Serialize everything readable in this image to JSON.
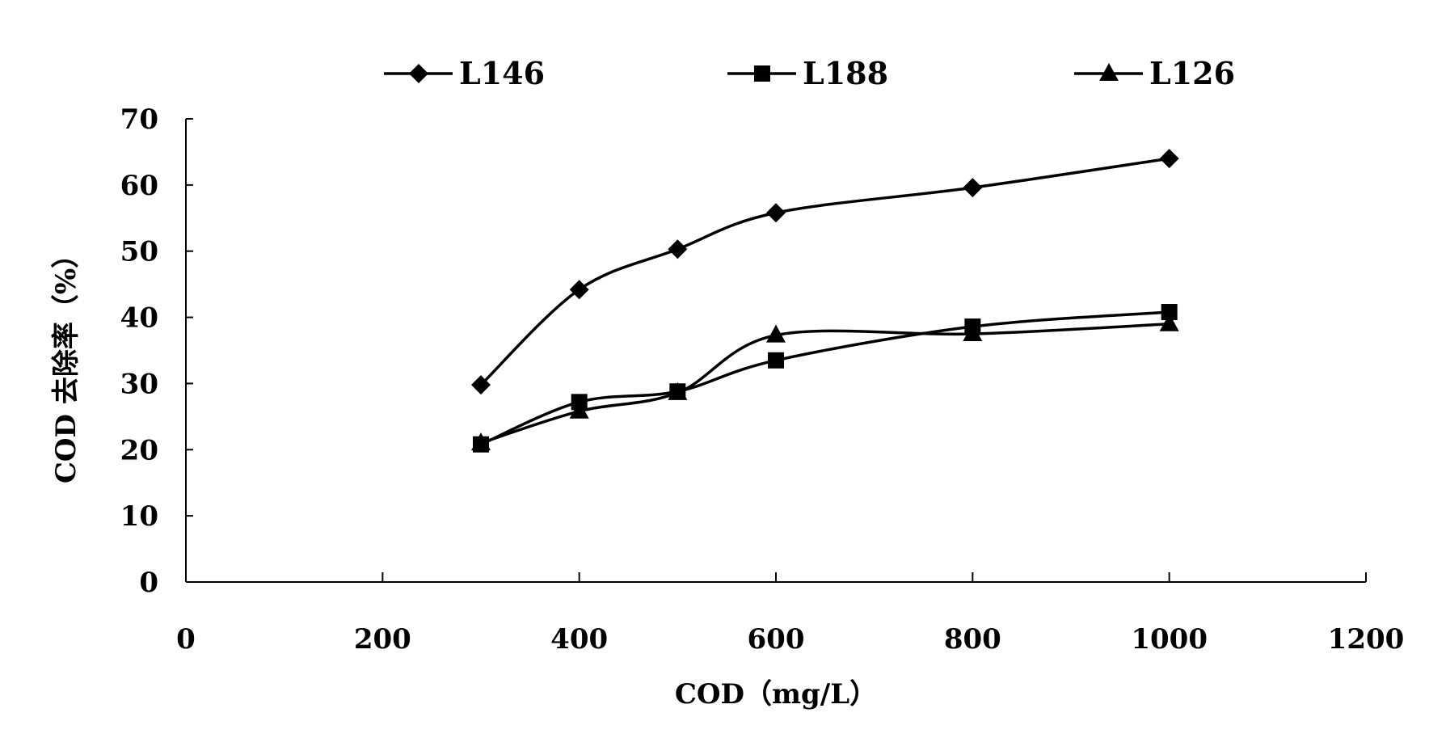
{
  "chart_data": {
    "type": "line",
    "xlabel": "COD（mg/L）",
    "ylabel": "COD 去除率（%）",
    "xlim": [
      0,
      1200
    ],
    "ylim": [
      0,
      70
    ],
    "x_ticks": [
      "0",
      "200",
      "400",
      "600",
      "800",
      "1000",
      "1200"
    ],
    "y_ticks": [
      "0",
      "10",
      "20",
      "30",
      "40",
      "50",
      "60",
      "70"
    ],
    "grid": false,
    "legend_position": "top",
    "series": [
      {
        "name": "L146",
        "marker": "diamond",
        "x": [
          300,
          400,
          500,
          600,
          800,
          1000
        ],
        "y": [
          29.8,
          44.2,
          50.3,
          55.8,
          59.6,
          64.0
        ]
      },
      {
        "name": "L188",
        "marker": "square",
        "x": [
          300,
          400,
          500,
          600,
          800,
          1000
        ],
        "y": [
          20.8,
          27.2,
          28.8,
          33.5,
          38.6,
          40.8
        ]
      },
      {
        "name": "L126",
        "marker": "triangle",
        "x": [
          300,
          400,
          500,
          600,
          800,
          1000
        ],
        "y": [
          21.0,
          25.8,
          28.6,
          37.3,
          37.5,
          39.0
        ]
      }
    ]
  }
}
